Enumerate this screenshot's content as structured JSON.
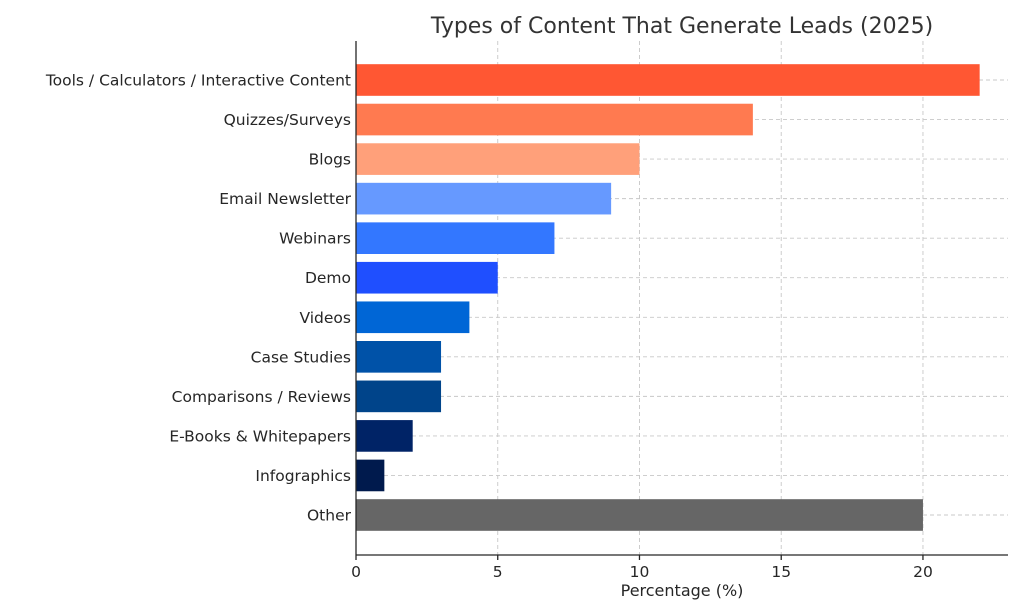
{
  "chart_data": {
    "type": "bar",
    "orientation": "horizontal",
    "title": "Types of Content That Generate Leads (2025)",
    "xlabel": "Percentage (%)",
    "ylabel": "",
    "xlim": [
      0,
      23
    ],
    "xticks": [
      0,
      5,
      10,
      15,
      20
    ],
    "grid": true,
    "categories": [
      "Tools / Calculators / Interactive Content",
      "Quizzes/Surveys",
      "Blogs",
      "Email Newsletter",
      "Webinars",
      "Demo",
      "Videos",
      "Case Studies",
      "Comparisons / Reviews",
      "E-Books & Whitepapers",
      "Infographics",
      "Other"
    ],
    "values": [
      22,
      14,
      10,
      9,
      7,
      5,
      4,
      3,
      3,
      2,
      1,
      20
    ],
    "colors": [
      "#ff5733",
      "#ff7a50",
      "#ffa07a",
      "#6699ff",
      "#3377ff",
      "#1f4fff",
      "#0066d6",
      "#0052a8",
      "#00448a",
      "#002366",
      "#001a4d",
      "#666666"
    ]
  }
}
